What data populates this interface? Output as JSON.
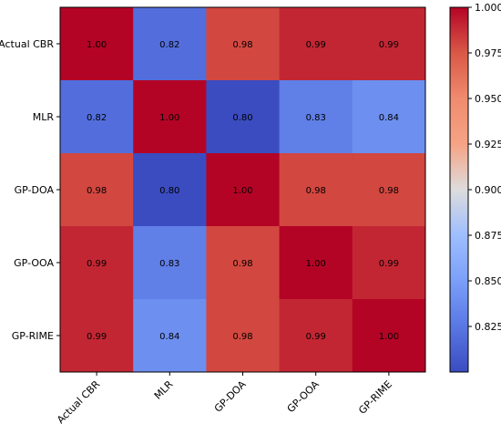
{
  "chart_data": {
    "type": "heatmap",
    "title": "",
    "xlabel": "",
    "ylabel": "",
    "rows": [
      "Actual CBR",
      "MLR",
      "GP-DOA",
      "GP-OOA",
      "GP-RIME"
    ],
    "columns": [
      "Actual CBR",
      "MLR",
      "GP-DOA",
      "GP-OOA",
      "GP-RIME"
    ],
    "values": [
      [
        1.0,
        0.82,
        0.98,
        0.99,
        0.99
      ],
      [
        0.82,
        1.0,
        0.8,
        0.83,
        0.84
      ],
      [
        0.98,
        0.8,
        1.0,
        0.98,
        0.98
      ],
      [
        0.99,
        0.83,
        0.98,
        1.0,
        0.99
      ],
      [
        0.99,
        0.84,
        0.98,
        0.99,
        1.0
      ]
    ],
    "cell_labels": [
      [
        "1.00",
        "0.82",
        "0.98",
        "0.99",
        "0.99"
      ],
      [
        "0.82",
        "1.00",
        "0.80",
        "0.83",
        "0.84"
      ],
      [
        "0.98",
        "0.80",
        "1.00",
        "0.98",
        "0.98"
      ],
      [
        "0.99",
        "0.83",
        "0.98",
        "1.00",
        "0.99"
      ],
      [
        "0.99",
        "0.84",
        "0.98",
        "0.99",
        "1.00"
      ]
    ],
    "colormap": "coolwarm",
    "color_range": [
      0.8,
      1.0
    ],
    "colorbar": {
      "ticks": [
        0.825,
        0.85,
        0.875,
        0.9,
        0.925,
        0.95,
        0.975,
        1.0
      ],
      "tick_labels": [
        "0.825",
        "0.850",
        "0.875",
        "0.900",
        "0.925",
        "0.950",
        "0.975",
        "1.000"
      ],
      "placement": "right"
    },
    "x_tick_rotation_deg": 45,
    "grid": false
  }
}
